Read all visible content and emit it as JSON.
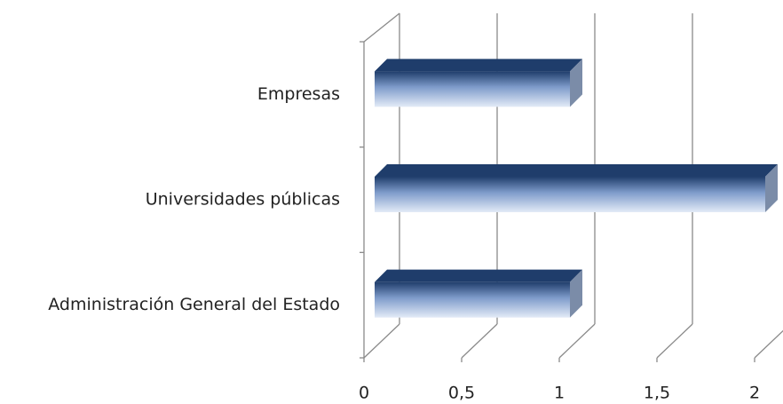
{
  "chart_data": {
    "type": "bar3d_horizontal",
    "categories": [
      "Empresas",
      "Universidades públicas",
      "Administración General del Estado"
    ],
    "values": [
      1,
      2,
      1
    ],
    "xlim": [
      0,
      2
    ],
    "xticks": [
      0,
      {
        "value": 0.5,
        "label": "0,5"
      },
      1,
      {
        "value": 1.5,
        "label": "1,5"
      },
      2
    ],
    "grid": true,
    "color": "#1f3d6b"
  }
}
